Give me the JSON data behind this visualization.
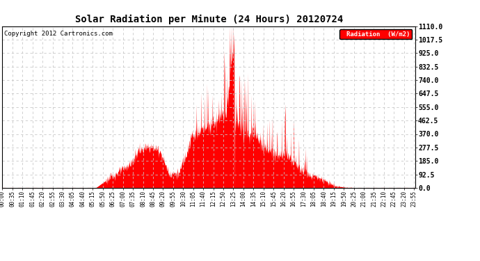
{
  "title": "Solar Radiation per Minute (24 Hours) 20120724",
  "copyright": "Copyright 2012 Cartronics.com",
  "legend_label": "Radiation  (W/m2)",
  "fill_color": "#FF0000",
  "background_color": "#FFFFFF",
  "grid_color": "#C8C8C8",
  "ylim": [
    0.0,
    1110.0
  ],
  "yticks": [
    0.0,
    92.5,
    185.0,
    277.5,
    370.0,
    462.5,
    555.0,
    647.5,
    740.0,
    832.5,
    925.0,
    1017.5,
    1110.0
  ],
  "tick_interval_minutes": 35
}
